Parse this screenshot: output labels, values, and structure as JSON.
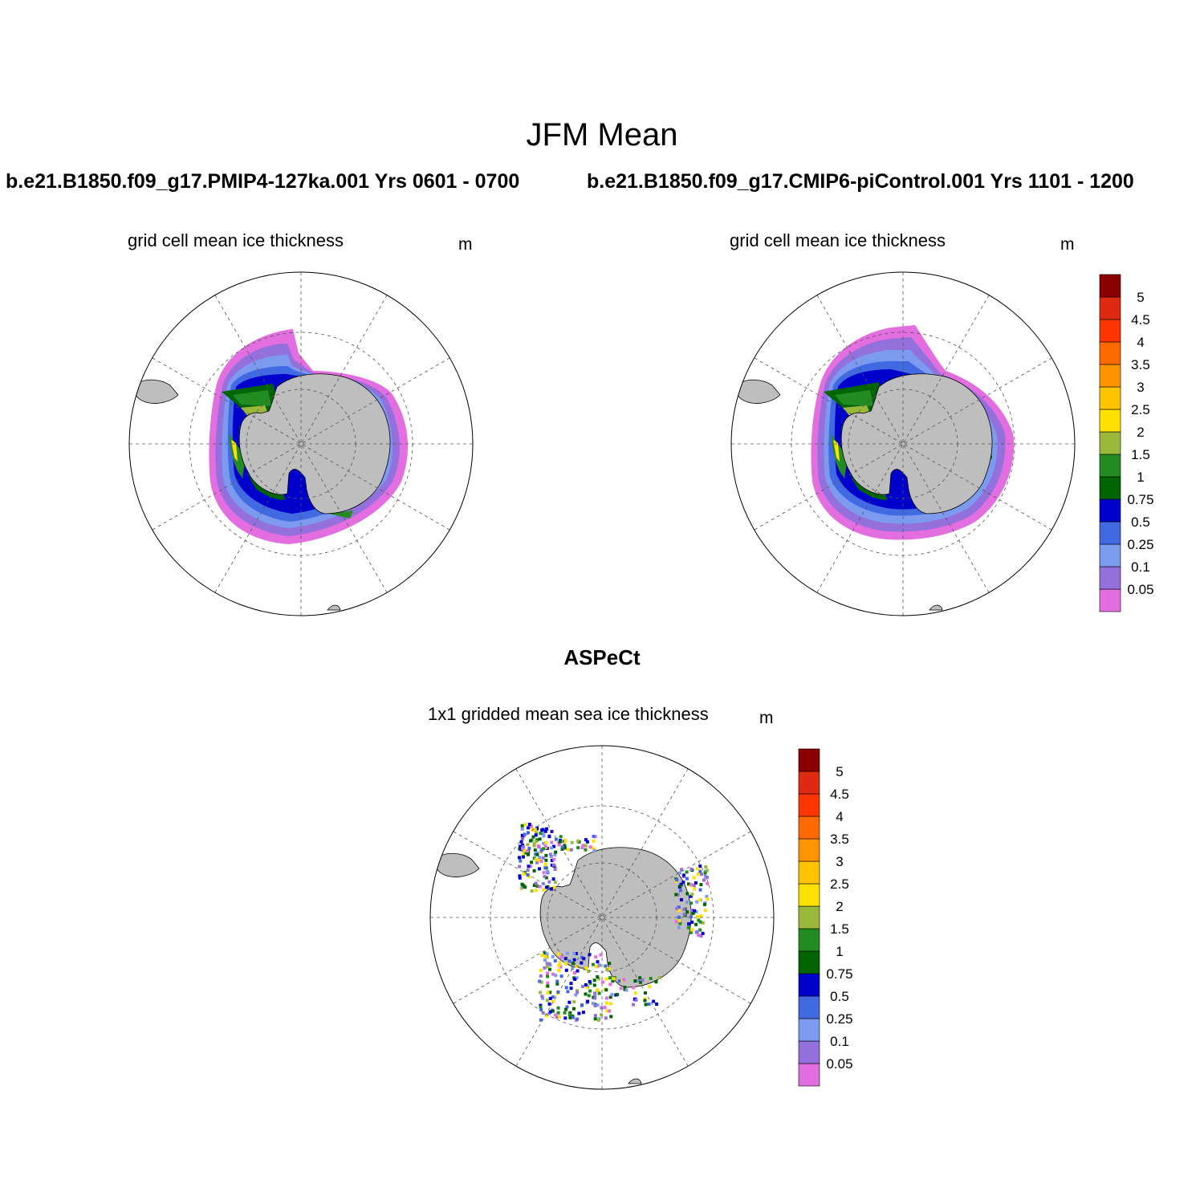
{
  "figure": {
    "title": "JFM Mean"
  },
  "panels": [
    {
      "run": "b.e21.B1850.f09_g17.PMIP4-127ka.001  Yrs 0601 - 0700",
      "subtitle": "grid cell mean ice thickness",
      "units": "m"
    },
    {
      "run": "b.e21.B1850.f09_g17.CMIP6-piControl.001  Yrs 1101 - 1200",
      "subtitle": "grid cell mean ice thickness",
      "units": "m"
    },
    {
      "run": "ASPeCt",
      "subtitle": "1x1 gridded mean sea ice thickness",
      "units": "m"
    }
  ],
  "colorbar": {
    "levels": [
      "0.05",
      "0.1",
      "0.25",
      "0.5",
      "0.75",
      "1",
      "1.5",
      "2",
      "2.5",
      "3",
      "3.5",
      "4",
      "4.5",
      "5"
    ],
    "colors": [
      "#e36ee0",
      "#9370db",
      "#7b9af0",
      "#4169e1",
      "#0000cd",
      "#006400",
      "#228b22",
      "#9ab93a",
      "#ffe000",
      "#ffc300",
      "#ff9400",
      "#ff6a00",
      "#ff3500",
      "#de2a12",
      "#8b0000"
    ]
  },
  "map_colors": {
    "land": "#bebebe",
    "ocean": "#ffffff",
    "grid": "#555555"
  },
  "chart_data": {
    "type": "heatmap",
    "projection": "south polar stereographic",
    "variable": "grid cell mean ice thickness",
    "units": "m",
    "contour_levels": [
      0.05,
      0.1,
      0.25,
      0.5,
      0.75,
      1,
      1.5,
      2,
      2.5,
      3,
      3.5,
      4,
      4.5,
      5
    ]
  }
}
